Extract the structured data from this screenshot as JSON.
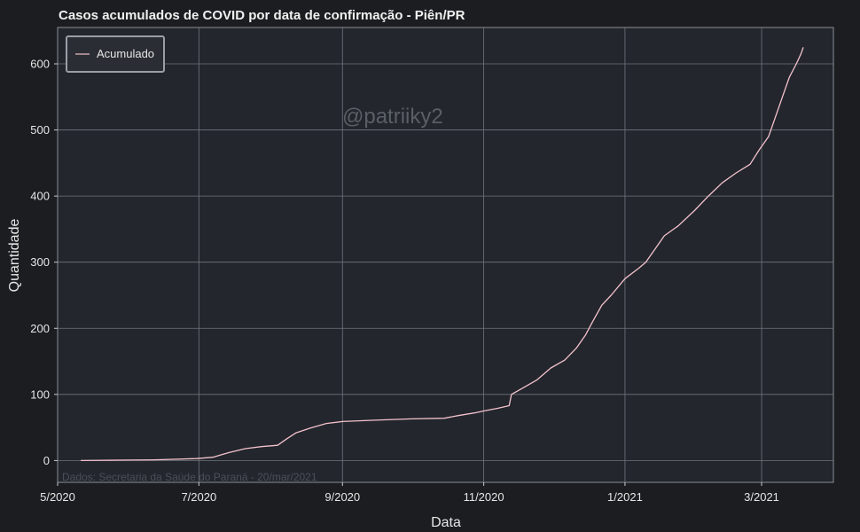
{
  "chart_data": {
    "type": "line",
    "title": "Casos acumulados de COVID por data de confirmação - Piên/PR",
    "xlabel": "Data",
    "ylabel": "Quantidade",
    "x_ticks": [
      "5/2020",
      "7/2020",
      "9/2020",
      "11/2020",
      "1/2021",
      "3/2021"
    ],
    "y_ticks": [
      0,
      100,
      200,
      300,
      400,
      500,
      600
    ],
    "xlim": [
      "2020-05-01",
      "2021-04-01"
    ],
    "ylim": [
      -33,
      655
    ],
    "grid": true,
    "legend_position": "top-left",
    "series": [
      {
        "name": "Acumulado",
        "color": "#f4c2cc",
        "x": [
          "2020-05-11",
          "2020-06-12",
          "2020-06-30",
          "2020-07-07",
          "2020-07-14",
          "2020-07-21",
          "2020-07-28",
          "2020-08-04",
          "2020-08-08",
          "2020-08-12",
          "2020-08-18",
          "2020-08-25",
          "2020-09-01",
          "2020-09-15",
          "2020-10-01",
          "2020-10-15",
          "2020-10-21",
          "2020-10-28",
          "2020-11-01",
          "2020-11-07",
          "2020-11-12",
          "2020-11-13",
          "2020-11-18",
          "2020-11-24",
          "2020-11-30",
          "2020-12-06",
          "2020-12-11",
          "2020-12-15",
          "2020-12-18",
          "2020-12-22",
          "2020-12-26",
          "2021-01-01",
          "2021-01-07",
          "2021-01-10",
          "2021-01-14",
          "2021-01-18",
          "2021-01-24",
          "2021-01-31",
          "2021-02-06",
          "2021-02-12",
          "2021-02-18",
          "2021-02-24",
          "2021-02-28",
          "2021-03-04",
          "2021-03-07",
          "2021-03-10",
          "2021-03-13",
          "2021-03-16",
          "2021-03-18",
          "2021-03-19"
        ],
        "y": [
          0,
          1,
          3,
          5,
          12,
          18,
          21,
          23,
          33,
          42,
          49,
          56,
          59,
          61,
          63,
          64,
          68,
          72,
          75,
          79,
          83,
          100,
          110,
          122,
          140,
          152,
          170,
          190,
          210,
          235,
          250,
          275,
          291,
          300,
          320,
          340,
          355,
          378,
          400,
          420,
          435,
          448,
          470,
          490,
          520,
          550,
          580,
          600,
          615,
          625
        ]
      }
    ]
  },
  "watermark": "@patriiky2",
  "source_note": "Dados: Secretaria da Saúde do Paraná - 20/mar/2021",
  "colors": {
    "figure_bg": "#1b1d20",
    "axes_bg": "#23262d",
    "grid": "#70757d",
    "line": "#f4c2cc"
  }
}
